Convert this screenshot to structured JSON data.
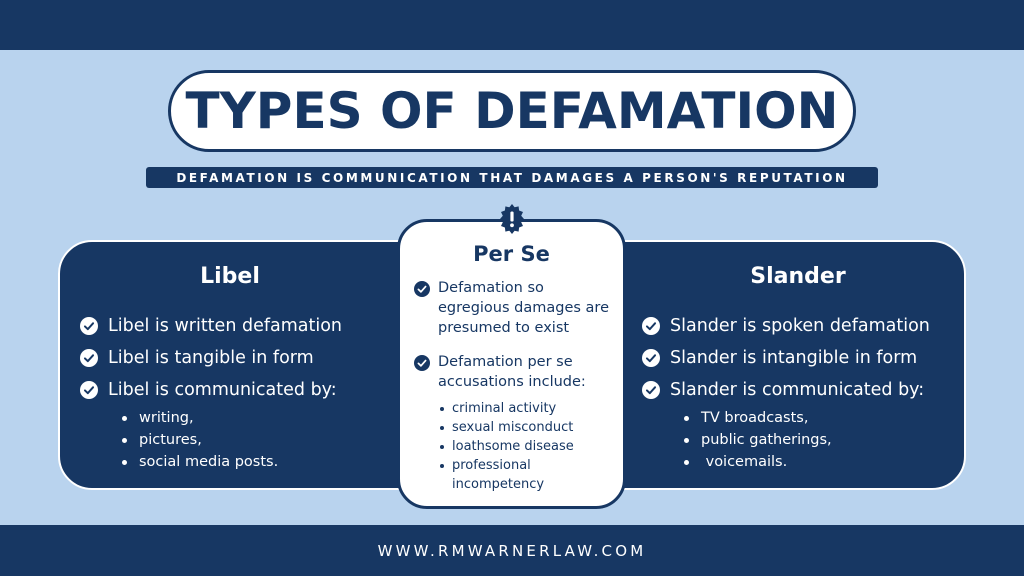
{
  "title": "TYPES OF DEFAMATION",
  "subtitle": "DEFAMATION IS COMMUNICATION THAT DAMAGES A PERSON'S REPUTATION",
  "colors": {
    "navy": "#173763",
    "light_blue": "#b9d3ee",
    "white": "#ffffff"
  },
  "libel": {
    "heading": "Libel",
    "points": [
      "Libel is written defamation",
      "Libel is tangible in form",
      "Libel is communicated by:"
    ],
    "means": [
      "writing,",
      "pictures,",
      "social media posts."
    ]
  },
  "per_se": {
    "icon": "exclamation-badge-icon",
    "heading": "Per Se",
    "point_1": "Defamation so egregious damages are presumed to exist",
    "point_2": "Defamation per se accusations include:",
    "accusations": [
      "criminal activity",
      "sexual misconduct",
      "loathsome disease",
      "professional incompetency"
    ]
  },
  "slander": {
    "heading": "Slander",
    "points": [
      "Slander is spoken defamation",
      "Slander is intangible in form",
      "Slander is communicated by:"
    ],
    "means": [
      "TV broadcasts,",
      "public gatherings,",
      " voicemails."
    ]
  },
  "footer": {
    "url": "WWW.RMWARNERLAW.COM"
  }
}
